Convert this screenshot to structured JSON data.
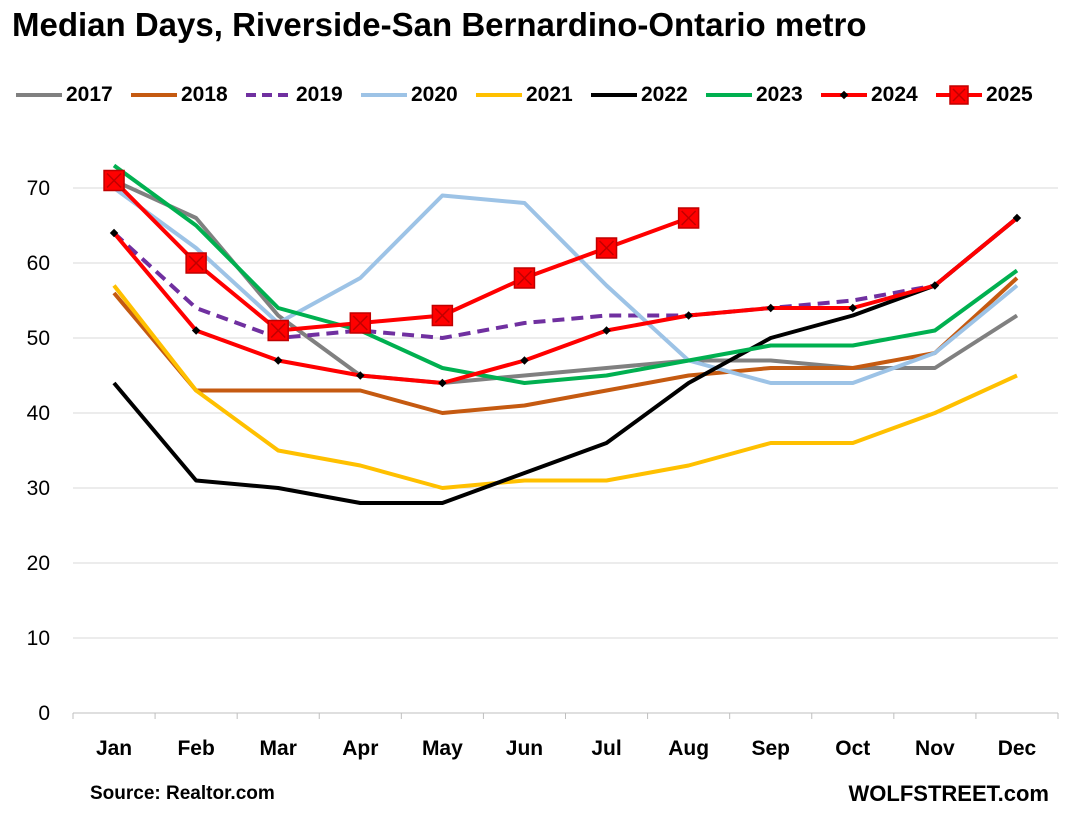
{
  "chart_data": {
    "type": "line",
    "title": "Median Days, Riverside-San Bernardino-Ontario metro",
    "xlabel": "",
    "ylabel": "",
    "categories": [
      "Jan",
      "Feb",
      "Mar",
      "Apr",
      "May",
      "Jun",
      "Jul",
      "Aug",
      "Sep",
      "Oct",
      "Nov",
      "Dec"
    ],
    "ylim": [
      0,
      70
    ],
    "yticks": [
      0,
      10,
      20,
      30,
      40,
      50,
      60,
      70
    ],
    "grid": "horizontal",
    "legend_position": "top",
    "series": [
      {
        "name": "2017",
        "color": "#808080",
        "style": "solid",
        "marker": "none",
        "values": [
          71,
          66,
          53,
          45,
          44,
          45,
          46,
          47,
          47,
          46,
          46,
          53
        ]
      },
      {
        "name": "2018",
        "color": "#C55A11",
        "style": "solid",
        "marker": "none",
        "values": [
          56,
          43,
          43,
          43,
          40,
          41,
          43,
          45,
          46,
          46,
          48,
          58
        ]
      },
      {
        "name": "2019",
        "color": "#7030A0",
        "style": "dashed",
        "marker": "none",
        "values": [
          64,
          54,
          50,
          51,
          50,
          52,
          53,
          53,
          54,
          55,
          57,
          66
        ]
      },
      {
        "name": "2020",
        "color": "#9DC3E6",
        "style": "solid",
        "marker": "none",
        "values": [
          70,
          62,
          52,
          58,
          69,
          68,
          57,
          47,
          44,
          44,
          48,
          57
        ]
      },
      {
        "name": "2021",
        "color": "#FFC000",
        "style": "solid",
        "marker": "none",
        "values": [
          57,
          43,
          35,
          33,
          30,
          31,
          31,
          33,
          36,
          36,
          40,
          45
        ]
      },
      {
        "name": "2022",
        "color": "#000000",
        "style": "solid",
        "marker": "none",
        "values": [
          44,
          31,
          30,
          28,
          28,
          32,
          36,
          44,
          50,
          53,
          57,
          66
        ]
      },
      {
        "name": "2023",
        "color": "#00B050",
        "style": "solid",
        "marker": "none",
        "values": [
          73,
          65,
          54,
          51,
          46,
          44,
          45,
          47,
          49,
          49,
          51,
          59
        ]
      },
      {
        "name": "2024",
        "color": "#FF0000",
        "style": "solid",
        "marker": "dot",
        "values": [
          64,
          51,
          47,
          45,
          44,
          47,
          51,
          53,
          54,
          54,
          57,
          66
        ]
      },
      {
        "name": "2025",
        "color": "#FF0000",
        "style": "solid",
        "marker": "square",
        "values": [
          71,
          60,
          51,
          52,
          53,
          58,
          62,
          66,
          null,
          null,
          null,
          null
        ]
      }
    ]
  },
  "footer": {
    "source": "Source: Realtor.com",
    "brand": "WOLFSTREET.com"
  }
}
